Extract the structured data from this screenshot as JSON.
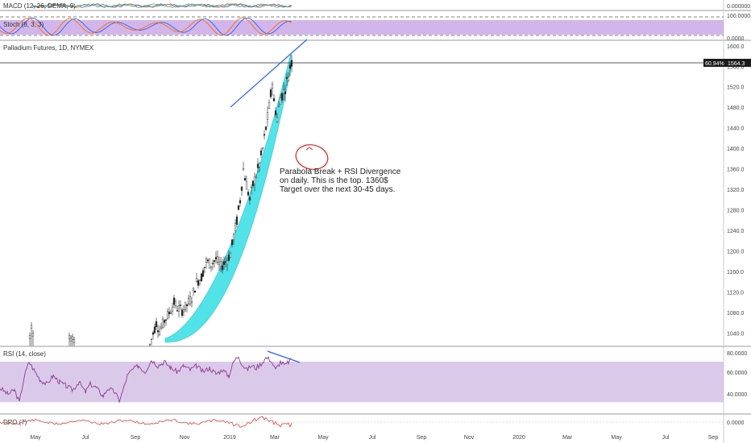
{
  "chart_data": {
    "type": "candlestick",
    "title": "Palladium Futures, 1D, NYMEX",
    "last_price_label": "1564.3",
    "last_change_label": "60.94%",
    "price_axis": {
      "ticks": [
        "1600.0",
        "1560.0",
        "1520.0",
        "1480.0",
        "1440.0",
        "1400.0",
        "1360.0",
        "1320.0",
        "1280.0",
        "1240.0",
        "1200.0",
        "1160.0",
        "1120.0",
        "1080.0",
        "1040.0"
      ],
      "ylim": [
        1015,
        1602
      ]
    },
    "time_axis": {
      "ticks": [
        "May",
        "Jul",
        "Sep",
        "Nov",
        "2019",
        "Mar",
        "May",
        "Jul",
        "Sep",
        "Nov",
        "2020",
        "Mar",
        "May",
        "Jul",
        "Sep"
      ]
    },
    "panels": {
      "macd": {
        "label": "MACD (12, 26, DEMA, 9)",
        "axis_ticks": [
          "0.000000"
        ]
      },
      "stoch": {
        "label": "Stoch (8, 3, 3)",
        "axis_ticks": [
          "100.0000",
          "0.0000"
        ],
        "band_color": "#9b59b6"
      },
      "rsi": {
        "label": "RSI (14, close)",
        "axis_ticks": [
          "80.0000",
          "60.0000",
          "40.0000"
        ],
        "ylim": [
          20,
          82
        ],
        "band": [
          30,
          70
        ]
      },
      "dpo": {
        "label": "DPO (7)",
        "axis_ticks": [
          "0.0000"
        ]
      }
    },
    "annotation": {
      "lines": [
        "Parabola Break + RSI Divergence",
        "on daily. This is the top. 1360$",
        "Target over the next 30-45 days."
      ]
    },
    "colors": {
      "parabola_fill": "#40e0e6",
      "trendline": "#2962ff",
      "rsi_line": "#8e3a8e",
      "dpo_line": "#d84040",
      "circle": "#e02020"
    }
  }
}
